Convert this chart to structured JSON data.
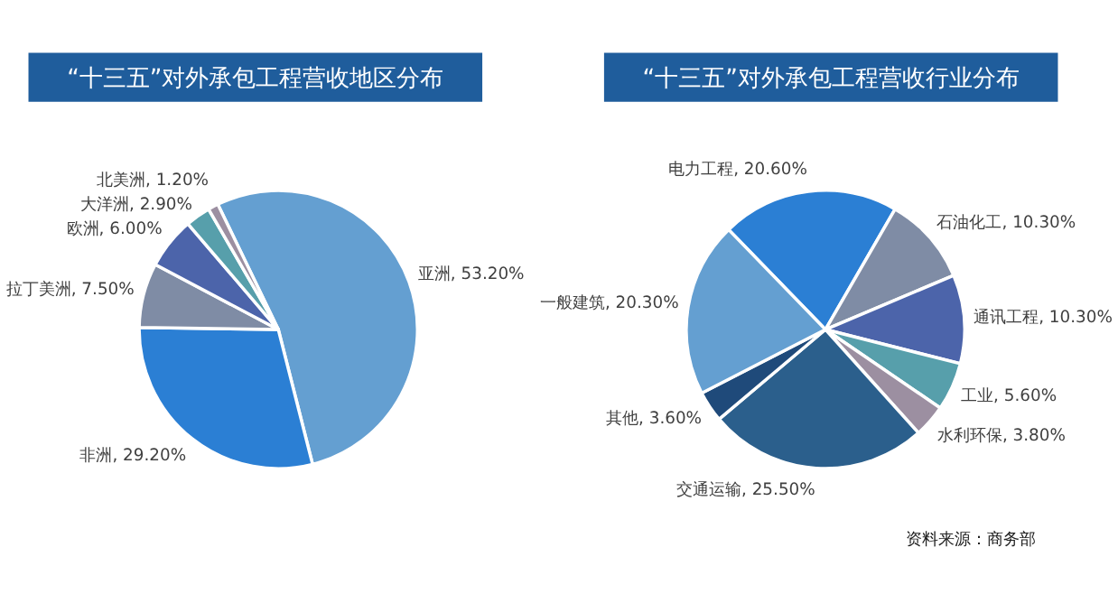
{
  "chart_data": [
    {
      "type": "pie",
      "title": "“十三五”对外承包工程营收地区分布",
      "categories": [
        "亚洲",
        "非洲",
        "拉丁美洲",
        "欧洲",
        "大洋洲",
        "北美洲"
      ],
      "values": [
        53.2,
        29.2,
        7.5,
        6.0,
        2.9,
        1.2
      ],
      "value_labels": [
        "53.20%",
        "29.20%",
        "7.50%",
        "6.00%",
        "2.90%",
        "1.20%"
      ],
      "colors": [
        "#649fd1",
        "#2b7fd4",
        "#7f8ca5",
        "#4c64aa",
        "#579fab",
        "#9c8fa1"
      ]
    },
    {
      "type": "pie",
      "title": "“十三五”对外承包工程营收行业分布",
      "categories": [
        "电力工程",
        "石油化工",
        "通讯工程",
        "工业",
        "水利环保",
        "交通运输",
        "其他",
        "一般建筑"
      ],
      "values": [
        20.6,
        10.3,
        10.3,
        5.6,
        3.8,
        25.5,
        3.6,
        20.3
      ],
      "value_labels": [
        "20.60%",
        "10.30%",
        "10.30%",
        "5.60%",
        "3.80%",
        "25.50%",
        "3.60%",
        "20.30%"
      ],
      "colors": [
        "#2b7fd4",
        "#7f8ca5",
        "#4c64aa",
        "#579fab",
        "#9c8fa1",
        "#2b5f8c",
        "#1f4a7a",
        "#649fd1"
      ],
      "annotations": [
        "资料来源：商务部"
      ]
    }
  ]
}
